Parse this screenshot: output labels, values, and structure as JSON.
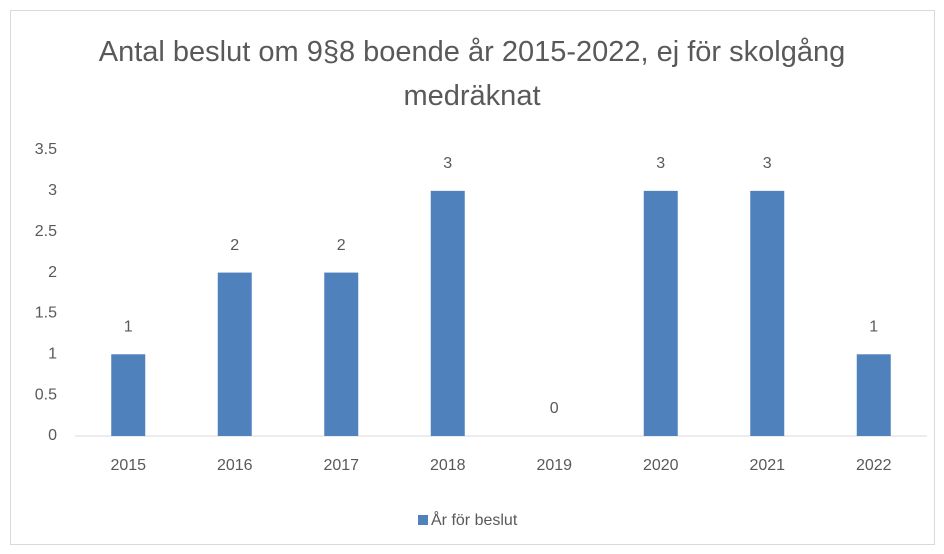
{
  "chart_data": {
    "type": "bar",
    "title": "Antal beslut om 9§8 boende år 2015-2022, ej för skolgång medräknat",
    "categories": [
      "2015",
      "2016",
      "2017",
      "2018",
      "2019",
      "2020",
      "2021",
      "2022"
    ],
    "series": [
      {
        "name": "År för beslut",
        "color": "#4f81bd",
        "values": [
          1,
          2,
          2,
          3,
          0,
          3,
          3,
          1
        ]
      }
    ],
    "ylim": [
      0,
      3.5
    ],
    "yticks": [
      0,
      0.5,
      1,
      1.5,
      2,
      2.5,
      3,
      3.5
    ],
    "grid": false,
    "legend": "bottom"
  }
}
